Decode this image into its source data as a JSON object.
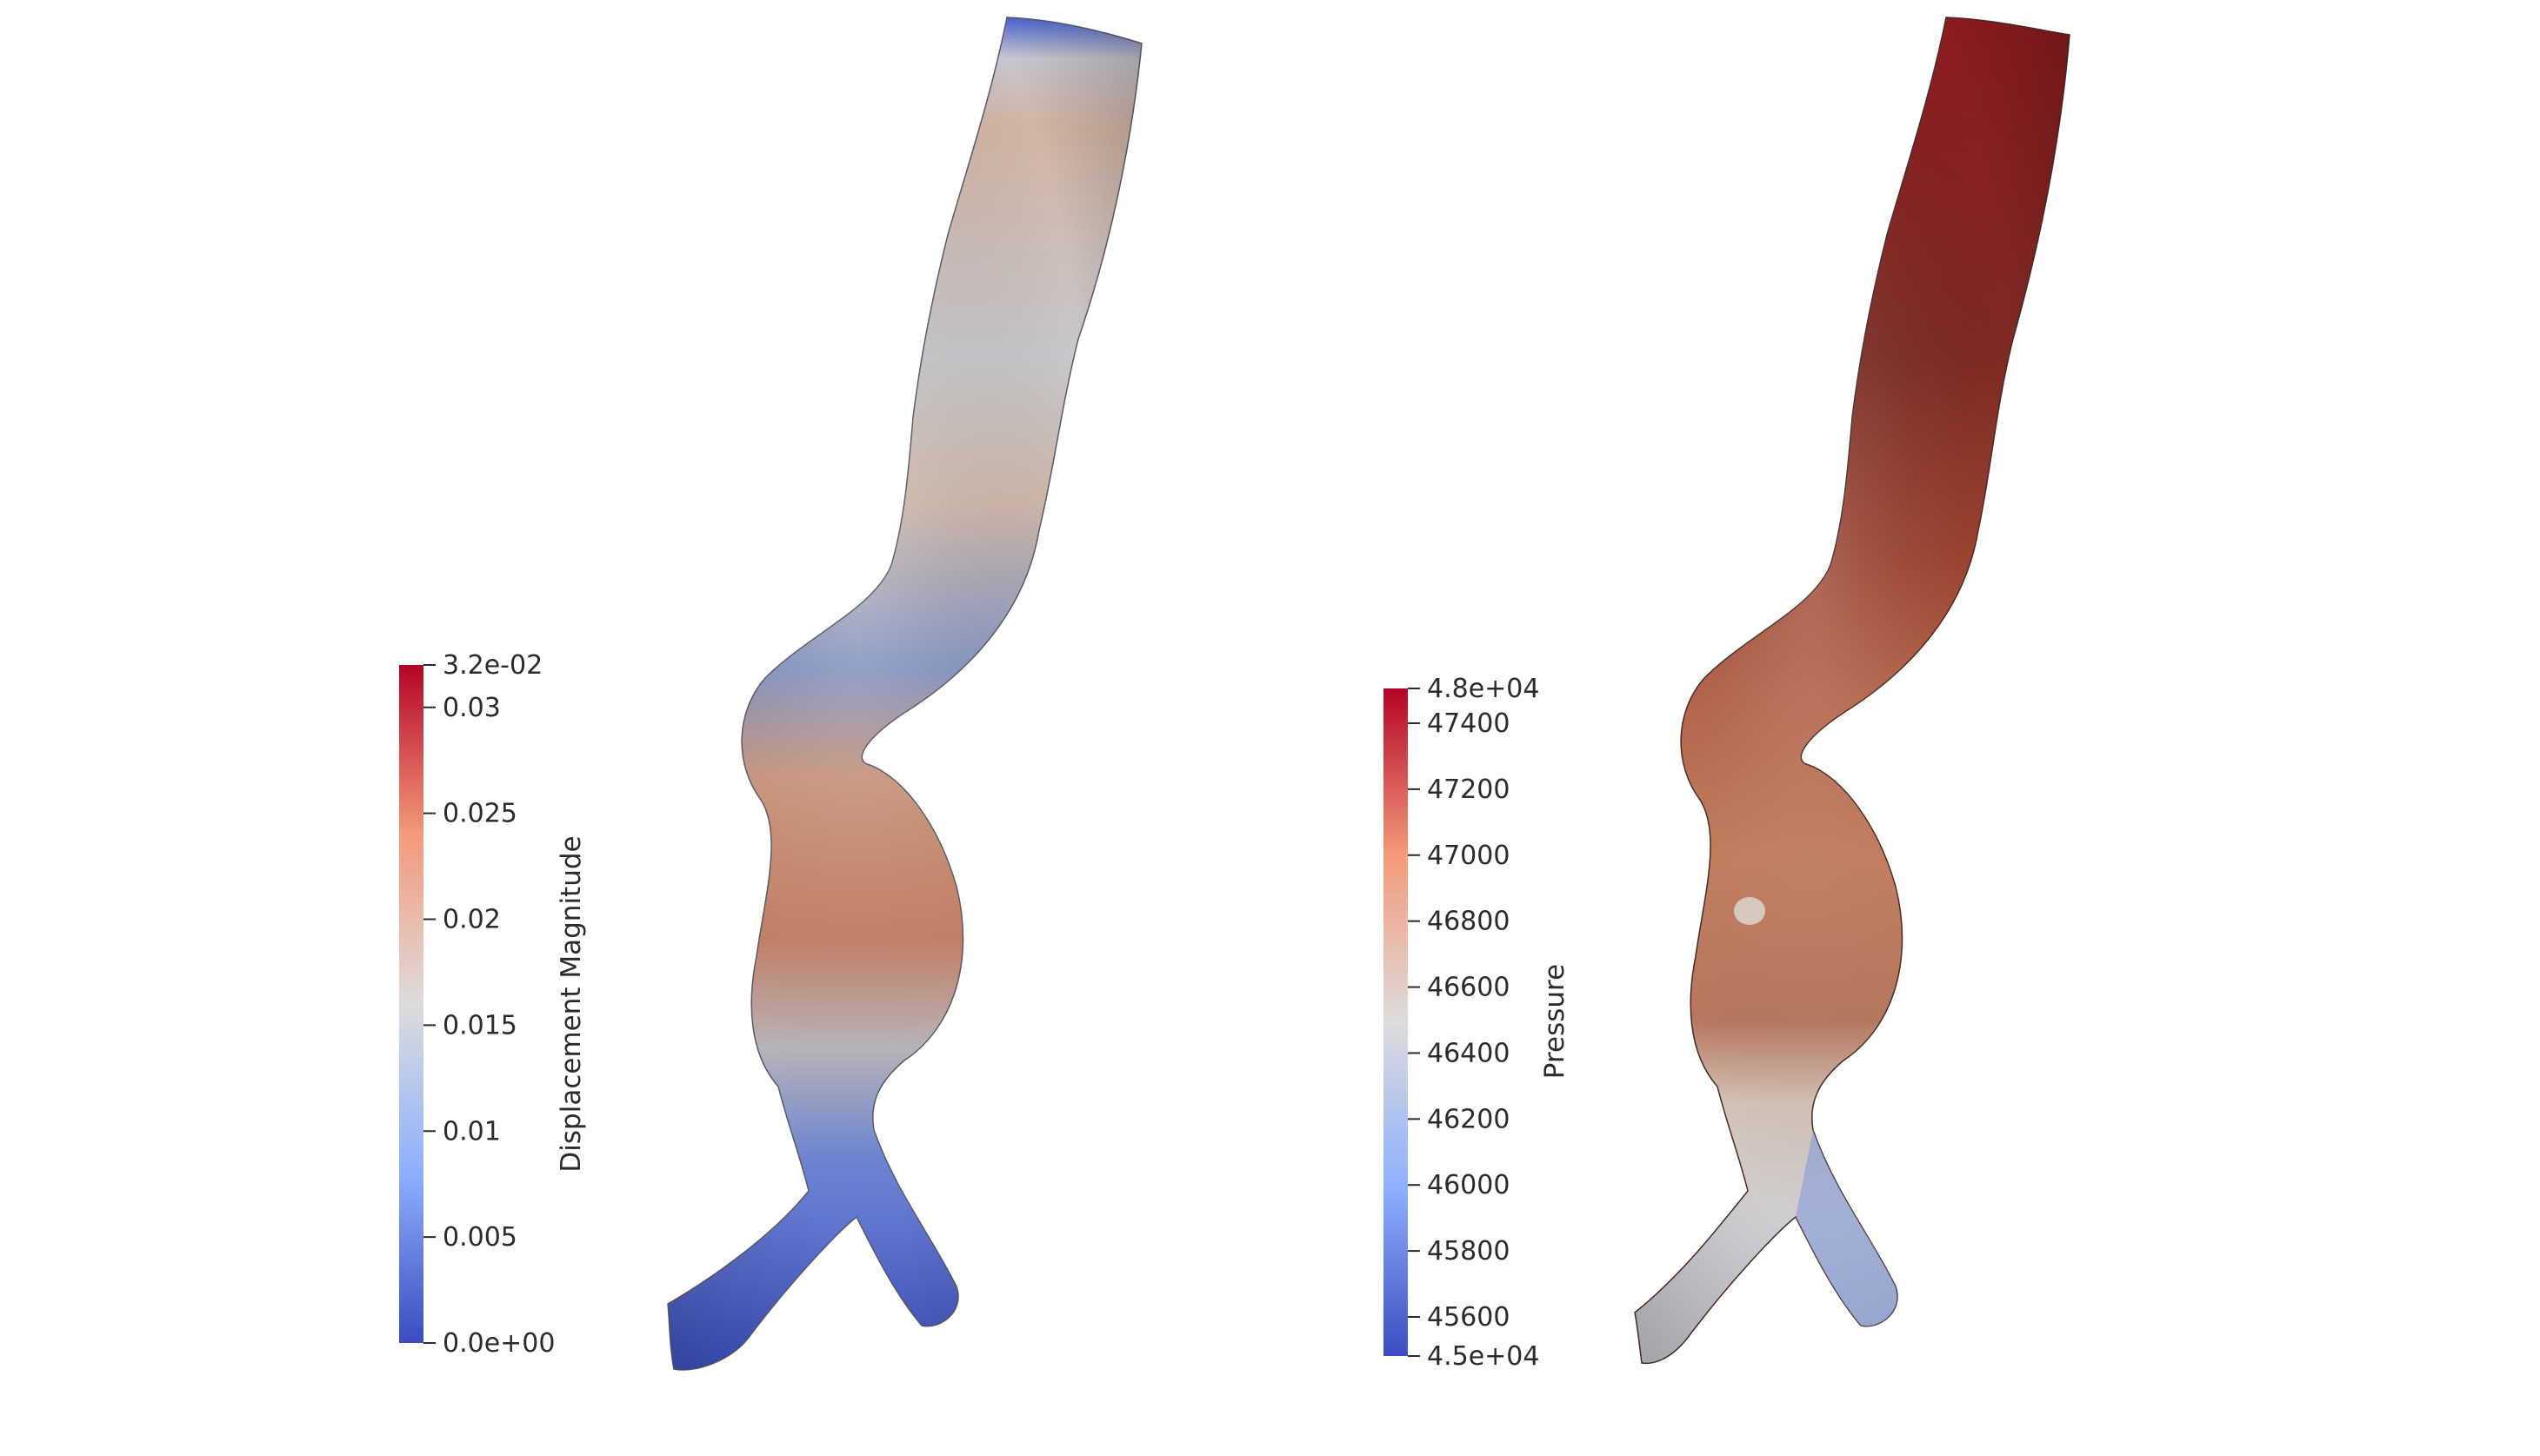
{
  "left_view": {
    "colorbar": {
      "title": "Displacement Magnitude",
      "max_label": "3.2e-02",
      "min_label": "0.0e+00",
      "range": [
        0,
        0.032
      ],
      "ticks": [
        {
          "value": 0.03,
          "label": "0.03"
        },
        {
          "value": 0.025,
          "label": "0.025"
        },
        {
          "value": 0.02,
          "label": "0.02"
        },
        {
          "value": 0.015,
          "label": "0.015"
        },
        {
          "value": 0.01,
          "label": "0.01"
        },
        {
          "value": 0.005,
          "label": "0.005"
        }
      ]
    }
  },
  "right_view": {
    "colorbar": {
      "title": "Pressure",
      "max_label": "4.8e+04",
      "min_label": "4.5e+04",
      "range": [
        45500,
        47500
      ],
      "ticks": [
        {
          "value": 47400,
          "label": "47400"
        },
        {
          "value": 47200,
          "label": "47200"
        },
        {
          "value": 47000,
          "label": "47000"
        },
        {
          "value": 46800,
          "label": "46800"
        },
        {
          "value": 46600,
          "label": "46600"
        },
        {
          "value": 46400,
          "label": "46400"
        },
        {
          "value": 46200,
          "label": "46200"
        },
        {
          "value": 46000,
          "label": "46000"
        },
        {
          "value": 45800,
          "label": "45800"
        },
        {
          "value": 45600,
          "label": "45600"
        }
      ]
    }
  },
  "colormap": [
    "#3b4cc0",
    "#8db0fe",
    "#dddcdc",
    "#f49a7b",
    "#b40426"
  ]
}
